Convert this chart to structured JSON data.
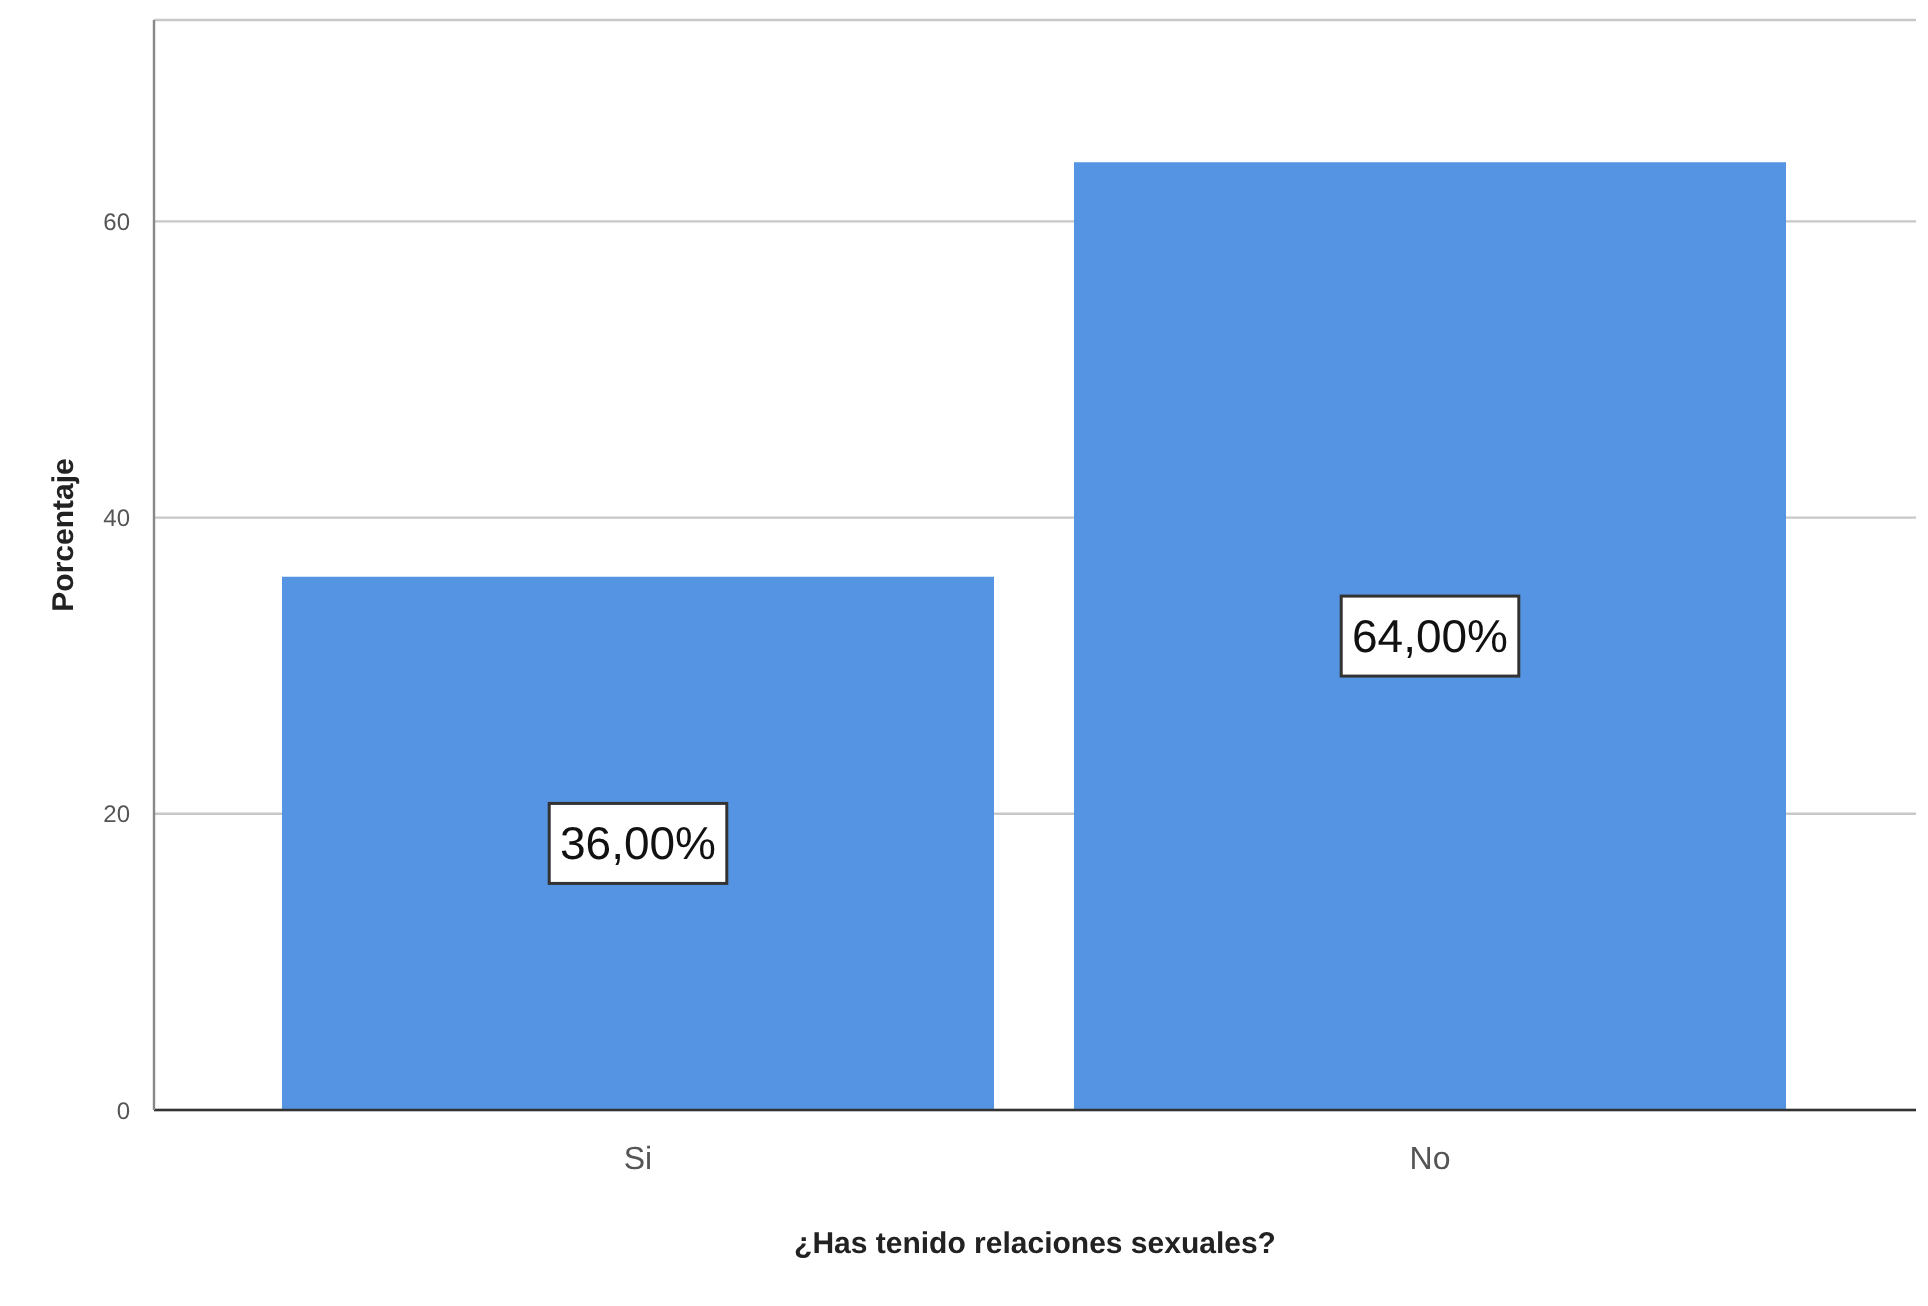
{
  "chart_data": {
    "type": "bar",
    "xlabel": "¿Has tenido relaciones sexuales?",
    "ylabel": "Porcentaje",
    "categories": [
      "Si",
      "No"
    ],
    "values": [
      36,
      64
    ],
    "color": "#5594e2",
    "value_labels": [
      "36,00%",
      "64,00%"
    ],
    "ylim": [
      0,
      73.6
    ],
    "yticks": [
      0,
      20,
      40,
      60
    ],
    "grid": "y"
  }
}
